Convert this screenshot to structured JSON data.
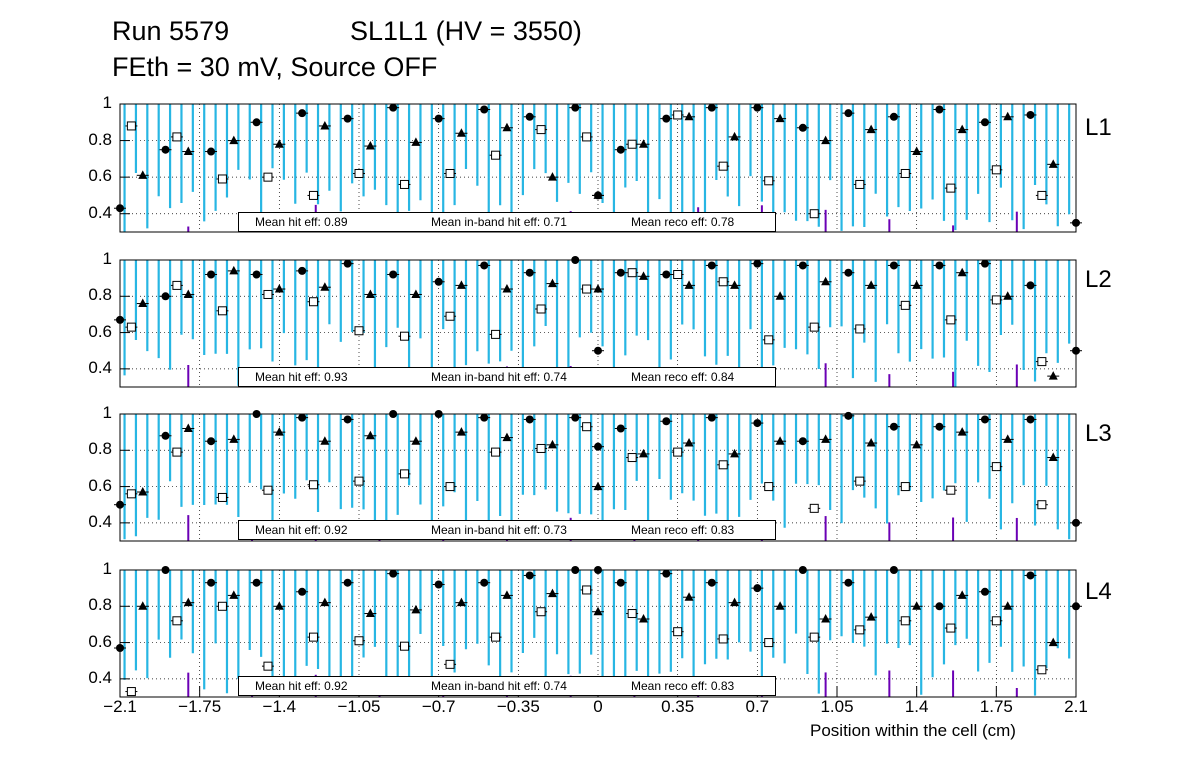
{
  "title": {
    "run": "Run 5579",
    "chamber": "SL1L1 (HV = 3550)",
    "conditions": "FEth = 30 mV, Source OFF"
  },
  "chart_data": [
    {
      "type": "scatter",
      "layer_label": "L1",
      "xlabel": "Position within the cell (cm)",
      "ylabel": "",
      "xlim": [
        -2.1,
        2.1
      ],
      "ylim": [
        0.3,
        1.0
      ],
      "yticks": [
        "0.4",
        "0.6",
        "0.8",
        "1"
      ],
      "legend": {
        "hit": "Mean hit  eff: 0.89",
        "inband": "Mean in-band hit eff: 0.71",
        "reco": "Mean reco eff: 0.78"
      },
      "series": [
        {
          "name": "hit_eff",
          "marker": "circle",
          "x": [
            -2.1,
            -1.9,
            -1.7,
            -1.5,
            -1.3,
            -1.1,
            -0.9,
            -0.7,
            -0.5,
            -0.3,
            -0.1,
            0.0,
            0.1,
            0.3,
            0.5,
            0.7,
            0.9,
            1.1,
            1.3,
            1.5,
            1.7,
            1.9,
            2.1
          ],
          "y": [
            0.43,
            0.75,
            0.74,
            0.9,
            0.95,
            0.92,
            0.98,
            0.92,
            0.97,
            0.93,
            0.98,
            0.5,
            0.75,
            0.92,
            0.98,
            0.98,
            0.87,
            0.95,
            0.93,
            0.97,
            0.9,
            0.94,
            0.35
          ]
        },
        {
          "name": "inband_eff",
          "marker": "open-square",
          "x": [
            -2.05,
            -1.85,
            -1.65,
            -1.45,
            -1.25,
            -1.05,
            -0.85,
            -0.65,
            -0.45,
            -0.25,
            -0.05,
            0.15,
            0.35,
            0.55,
            0.75,
            0.95,
            1.15,
            1.35,
            1.55,
            1.75,
            1.95
          ],
          "y": [
            0.88,
            0.82,
            0.59,
            0.6,
            0.5,
            0.62,
            0.56,
            0.62,
            0.72,
            0.86,
            0.82,
            0.78,
            0.94,
            0.66,
            0.58,
            0.4,
            0.56,
            0.62,
            0.54,
            0.64,
            0.5
          ]
        },
        {
          "name": "reco_eff",
          "marker": "triangle",
          "x": [
            -2.0,
            -1.8,
            -1.6,
            -1.4,
            -1.2,
            -1.0,
            -0.8,
            -0.6,
            -0.4,
            -0.2,
            0.0,
            0.2,
            0.4,
            0.6,
            0.8,
            1.0,
            1.2,
            1.4,
            1.6,
            1.8,
            2.0
          ],
          "y": [
            0.61,
            0.74,
            0.8,
            0.78,
            0.88,
            0.77,
            0.79,
            0.84,
            0.87,
            0.6,
            0.5,
            0.78,
            0.93,
            0.82,
            0.92,
            0.8,
            0.86,
            0.74,
            0.86,
            0.93,
            0.67
          ]
        }
      ]
    },
    {
      "type": "scatter",
      "layer_label": "L2",
      "xlim": [
        -2.1,
        2.1
      ],
      "ylim": [
        0.3,
        1.0
      ],
      "yticks": [
        "0.4",
        "0.6",
        "0.8",
        "1"
      ],
      "legend": {
        "hit": "Mean hit  eff: 0.93",
        "inband": "Mean in-band hit eff: 0.74",
        "reco": "Mean reco eff: 0.84"
      },
      "series": [
        {
          "name": "hit_eff",
          "marker": "circle",
          "x": [
            -2.1,
            -1.9,
            -1.7,
            -1.5,
            -1.3,
            -1.1,
            -0.9,
            -0.7,
            -0.5,
            -0.3,
            -0.1,
            0.0,
            0.1,
            0.3,
            0.5,
            0.7,
            0.9,
            1.1,
            1.3,
            1.5,
            1.7,
            1.9,
            2.1
          ],
          "y": [
            0.67,
            0.8,
            0.92,
            0.92,
            0.94,
            0.98,
            0.92,
            0.88,
            0.97,
            0.93,
            1.0,
            0.5,
            0.93,
            0.92,
            0.97,
            0.98,
            0.97,
            0.93,
            0.97,
            0.97,
            0.98,
            0.86,
            0.5
          ]
        },
        {
          "name": "inband_eff",
          "marker": "open-square",
          "x": [
            -2.05,
            -1.85,
            -1.65,
            -1.45,
            -1.25,
            -1.05,
            -0.85,
            -0.65,
            -0.45,
            -0.25,
            -0.05,
            0.15,
            0.35,
            0.55,
            0.75,
            0.95,
            1.15,
            1.35,
            1.55,
            1.75,
            1.95
          ],
          "y": [
            0.63,
            0.86,
            0.72,
            0.81,
            0.77,
            0.61,
            0.58,
            0.69,
            0.59,
            0.73,
            0.84,
            0.93,
            0.92,
            0.88,
            0.56,
            0.63,
            0.62,
            0.75,
            0.67,
            0.78,
            0.44
          ]
        },
        {
          "name": "reco_eff",
          "marker": "triangle",
          "x": [
            -2.0,
            -1.8,
            -1.6,
            -1.4,
            -1.2,
            -1.0,
            -0.8,
            -0.6,
            -0.4,
            -0.2,
            0.0,
            0.2,
            0.4,
            0.6,
            0.8,
            1.0,
            1.2,
            1.4,
            1.6,
            1.8,
            2.0
          ],
          "y": [
            0.76,
            0.81,
            0.94,
            0.84,
            0.85,
            0.81,
            0.81,
            0.86,
            0.84,
            0.87,
            0.84,
            0.91,
            0.86,
            0.86,
            0.8,
            0.88,
            0.86,
            0.86,
            0.93,
            0.8,
            0.36
          ]
        }
      ]
    },
    {
      "type": "scatter",
      "layer_label": "L3",
      "xlim": [
        -2.1,
        2.1
      ],
      "ylim": [
        0.3,
        1.0
      ],
      "yticks": [
        "0.4",
        "0.6",
        "0.8",
        "1"
      ],
      "legend": {
        "hit": "Mean hit  eff: 0.92",
        "inband": "Mean in-band hit eff: 0.73",
        "reco": "Mean reco eff: 0.83"
      },
      "series": [
        {
          "name": "hit_eff",
          "marker": "circle",
          "x": [
            -2.1,
            -1.9,
            -1.7,
            -1.5,
            -1.3,
            -1.1,
            -0.9,
            -0.7,
            -0.5,
            -0.3,
            -0.1,
            0.0,
            0.1,
            0.3,
            0.5,
            0.7,
            0.9,
            1.1,
            1.3,
            1.5,
            1.7,
            1.9,
            2.1
          ],
          "y": [
            0.5,
            0.88,
            0.85,
            1.0,
            0.98,
            0.97,
            1.0,
            1.0,
            0.98,
            0.97,
            0.98,
            0.82,
            0.92,
            0.96,
            0.98,
            0.95,
            0.85,
            0.99,
            0.93,
            0.93,
            0.97,
            0.97,
            0.4
          ]
        },
        {
          "name": "inband_eff",
          "marker": "open-square",
          "x": [
            -2.05,
            -1.85,
            -1.65,
            -1.45,
            -1.25,
            -1.05,
            -0.85,
            -0.65,
            -0.45,
            -0.25,
            -0.05,
            0.15,
            0.35,
            0.55,
            0.75,
            0.95,
            1.15,
            1.35,
            1.55,
            1.75,
            1.95
          ],
          "y": [
            0.56,
            0.79,
            0.54,
            0.58,
            0.61,
            0.63,
            0.67,
            0.6,
            0.79,
            0.81,
            0.93,
            0.76,
            0.79,
            0.72,
            0.6,
            0.48,
            0.63,
            0.6,
            0.58,
            0.71,
            0.5
          ]
        },
        {
          "name": "reco_eff",
          "marker": "triangle",
          "x": [
            -2.0,
            -1.8,
            -1.6,
            -1.4,
            -1.2,
            -1.0,
            -0.8,
            -0.6,
            -0.4,
            -0.2,
            0.0,
            0.2,
            0.4,
            0.6,
            0.8,
            1.0,
            1.2,
            1.4,
            1.6,
            1.8,
            2.0
          ],
          "y": [
            0.57,
            0.92,
            0.86,
            0.9,
            0.85,
            0.88,
            0.85,
            0.9,
            0.87,
            0.83,
            0.6,
            0.78,
            0.84,
            0.78,
            0.85,
            0.86,
            0.84,
            0.83,
            0.9,
            0.86,
            0.76
          ]
        }
      ]
    },
    {
      "type": "scatter",
      "layer_label": "L4",
      "xlim": [
        -2.1,
        2.1
      ],
      "ylim": [
        0.3,
        1.0
      ],
      "yticks": [
        "0.4",
        "0.6",
        "0.8",
        "1"
      ],
      "legend": {
        "hit": "Mean hit  eff: 0.92",
        "inband": "Mean in-band hit eff: 0.74",
        "reco": "Mean reco eff: 0.83"
      },
      "series": [
        {
          "name": "hit_eff",
          "marker": "circle",
          "x": [
            -2.1,
            -1.9,
            -1.7,
            -1.5,
            -1.3,
            -1.1,
            -0.9,
            -0.7,
            -0.5,
            -0.3,
            -0.1,
            0.0,
            0.1,
            0.3,
            0.5,
            0.7,
            0.9,
            1.1,
            1.3,
            1.5,
            1.7,
            1.9,
            2.1
          ],
          "y": [
            0.57,
            1.0,
            0.93,
            0.93,
            0.88,
            0.93,
            0.98,
            0.92,
            0.93,
            0.97,
            1.0,
            1.0,
            0.93,
            0.98,
            0.93,
            0.9,
            1.0,
            0.93,
            1.0,
            0.8,
            0.88,
            0.97,
            0.8
          ]
        },
        {
          "name": "inband_eff",
          "marker": "open-square",
          "x": [
            -2.05,
            -1.85,
            -1.65,
            -1.45,
            -1.25,
            -1.05,
            -0.85,
            -0.65,
            -0.45,
            -0.25,
            -0.05,
            0.15,
            0.35,
            0.55,
            0.75,
            0.95,
            1.15,
            1.35,
            1.55,
            1.75,
            1.95
          ],
          "y": [
            0.33,
            0.72,
            0.8,
            0.47,
            0.63,
            0.61,
            0.58,
            0.48,
            0.63,
            0.77,
            0.89,
            0.76,
            0.66,
            0.62,
            0.6,
            0.63,
            0.67,
            0.72,
            0.68,
            0.72,
            0.45
          ]
        },
        {
          "name": "reco_eff",
          "marker": "triangle",
          "x": [
            -2.0,
            -1.8,
            -1.6,
            -1.4,
            -1.2,
            -1.0,
            -0.8,
            -0.6,
            -0.4,
            -0.2,
            0.0,
            0.2,
            0.4,
            0.6,
            0.8,
            1.0,
            1.2,
            1.4,
            1.6,
            1.8,
            2.0
          ],
          "y": [
            0.8,
            0.82,
            0.86,
            0.8,
            0.82,
            0.76,
            0.78,
            0.82,
            0.86,
            0.87,
            0.77,
            0.73,
            0.85,
            0.82,
            0.8,
            0.73,
            0.74,
            0.8,
            0.86,
            0.8,
            0.6
          ]
        }
      ]
    }
  ],
  "x_axis": {
    "ticks": [
      "−2.1",
      "−1.75",
      "−1.4",
      "−1.05",
      "−0.7",
      "−0.35",
      "0",
      "0.35",
      "0.7",
      "1.05",
      "1.4",
      "1.75",
      "2.1"
    ],
    "tick_values": [
      -2.1,
      -1.75,
      -1.4,
      -1.05,
      -0.7,
      -0.35,
      0,
      0.35,
      0.7,
      1.05,
      1.4,
      1.75,
      2.1
    ]
  },
  "colors": {
    "bands": "#27b6e3",
    "purple": "#6b00b5",
    "red": "#d10000",
    "marker": "#000000"
  }
}
